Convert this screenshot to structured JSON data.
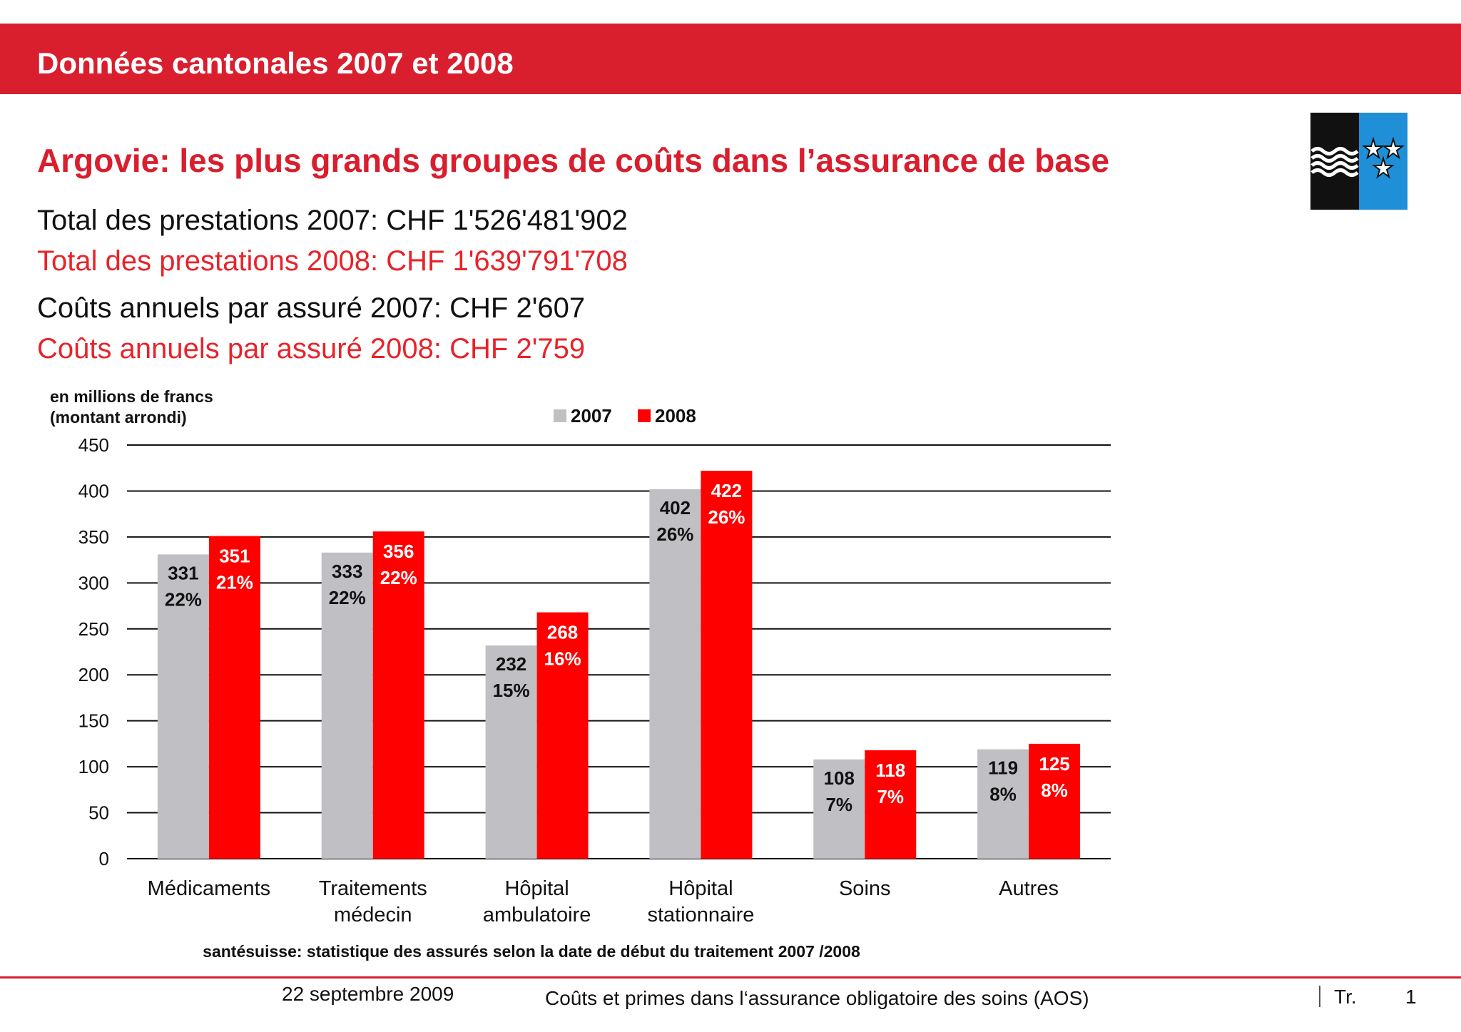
{
  "header": {
    "banner_title": "Données cantonales 2007 et 2008"
  },
  "slide": {
    "title": "Argovie: les plus grands groupes de coûts dans l’assurance de base",
    "stats": [
      {
        "text": "Total des prestations 2007: CHF 1'526'481'902",
        "color": "#111111"
      },
      {
        "text": "Total des prestations 2008: CHF 1'639'791'708",
        "color": "#e8232a"
      },
      {
        "text": "Coûts annuels par assuré 2007: CHF 2'607",
        "color": "#111111"
      },
      {
        "text": "Coûts annuels par assuré 2008: CHF 2'759",
        "color": "#e8232a"
      }
    ]
  },
  "colors": {
    "accent": "#d91e2e",
    "series_2007": "#c0bfc4",
    "series_2008": "#ff0000",
    "flag_blue": "#1f8fd8",
    "flag_black": "#111111"
  },
  "chart_data": {
    "type": "bar",
    "ylabel_line1": "en millions de francs",
    "ylabel_line2": "(montant arrondi)",
    "ylim": [
      0,
      450
    ],
    "yticks": [
      "0",
      "50",
      "100",
      "150",
      "200",
      "250",
      "300",
      "350",
      "400",
      "450"
    ],
    "grid": true,
    "legend_position": "top-center",
    "categories": [
      [
        "Médicaments"
      ],
      [
        "Traitements",
        "médecin"
      ],
      [
        "Hôpital",
        "ambulatoire"
      ],
      [
        "Hôpital",
        "stationnaire"
      ],
      [
        "Soins"
      ],
      [
        "Autres"
      ]
    ],
    "series": [
      {
        "name": "2007",
        "values": [
          331,
          333,
          232,
          402,
          108,
          119
        ],
        "percent_labels": [
          "22%",
          "22%",
          "15%",
          "26%",
          "7%",
          "8%"
        ]
      },
      {
        "name": "2008",
        "values": [
          351,
          356,
          268,
          422,
          118,
          125
        ],
        "percent_labels": [
          "21%",
          "22%",
          "16%",
          "26%",
          "7%",
          "8%"
        ]
      }
    ],
    "source": "santésuisse: statistique des assurés selon la date de début du traitement 2007 /2008"
  },
  "footer": {
    "date": "22 septembre 2009",
    "subject": "Coûts et primes dans l‘assurance obligatoire des soins (AOS)",
    "section": "Tr.",
    "page": "1"
  }
}
